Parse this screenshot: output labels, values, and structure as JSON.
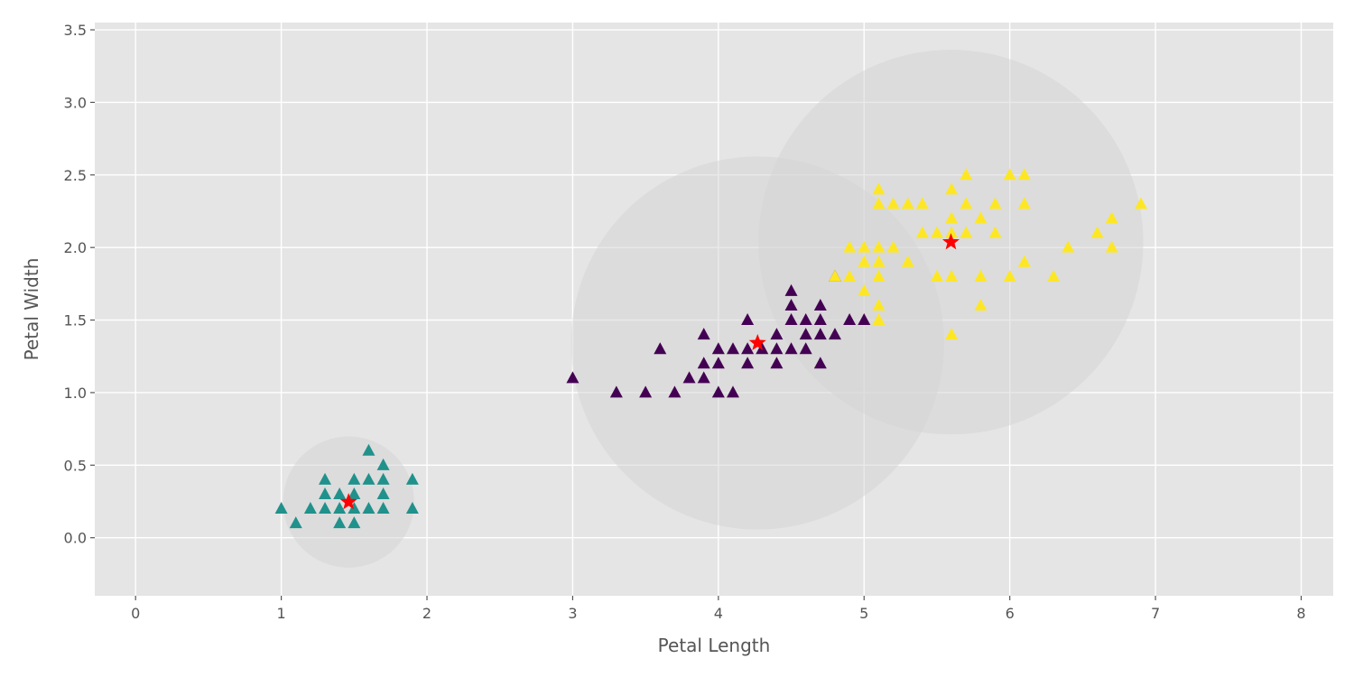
{
  "chart_data": {
    "type": "scatter",
    "title": "",
    "xlabel": "Petal Length",
    "ylabel": "Petal Width",
    "xlim": [
      -0.28,
      8.22
    ],
    "ylim": [
      -0.4,
      3.55
    ],
    "xticks": [
      0,
      1,
      2,
      3,
      4,
      5,
      6,
      7,
      8
    ],
    "yticks": [
      0.0,
      0.5,
      1.0,
      1.5,
      2.0,
      2.5,
      3.0,
      3.5
    ],
    "ytick_labels": [
      "0.0",
      "0.5",
      "1.0",
      "1.5",
      "2.0",
      "2.5",
      "3.0",
      "3.5"
    ],
    "grid": true,
    "background": "#e5e5e5",
    "marker": "triangle",
    "series": [
      {
        "color": "#21918c",
        "points": [
          [
            1.0,
            0.2
          ],
          [
            1.1,
            0.1
          ],
          [
            1.2,
            0.2
          ],
          [
            1.3,
            0.2
          ],
          [
            1.3,
            0.3
          ],
          [
            1.3,
            0.4
          ],
          [
            1.4,
            0.1
          ],
          [
            1.4,
            0.2
          ],
          [
            1.4,
            0.3
          ],
          [
            1.5,
            0.1
          ],
          [
            1.5,
            0.2
          ],
          [
            1.5,
            0.3
          ],
          [
            1.5,
            0.4
          ],
          [
            1.6,
            0.2
          ],
          [
            1.6,
            0.4
          ],
          [
            1.6,
            0.6
          ],
          [
            1.7,
            0.2
          ],
          [
            1.7,
            0.3
          ],
          [
            1.7,
            0.4
          ],
          [
            1.7,
            0.5
          ],
          [
            1.9,
            0.2
          ],
          [
            1.9,
            0.4
          ]
        ]
      },
      {
        "color": "#440154",
        "points": [
          [
            3.0,
            1.1
          ],
          [
            3.3,
            1.0
          ],
          [
            3.5,
            1.0
          ],
          [
            3.6,
            1.3
          ],
          [
            3.7,
            1.0
          ],
          [
            3.8,
            1.1
          ],
          [
            3.9,
            1.1
          ],
          [
            3.9,
            1.2
          ],
          [
            3.9,
            1.4
          ],
          [
            4.0,
            1.0
          ],
          [
            4.0,
            1.2
          ],
          [
            4.0,
            1.3
          ],
          [
            4.1,
            1.0
          ],
          [
            4.1,
            1.3
          ],
          [
            4.2,
            1.2
          ],
          [
            4.2,
            1.3
          ],
          [
            4.2,
            1.5
          ],
          [
            4.3,
            1.3
          ],
          [
            4.4,
            1.2
          ],
          [
            4.4,
            1.3
          ],
          [
            4.4,
            1.4
          ],
          [
            4.5,
            1.3
          ],
          [
            4.5,
            1.5
          ],
          [
            4.5,
            1.6
          ],
          [
            4.5,
            1.7
          ],
          [
            4.6,
            1.3
          ],
          [
            4.6,
            1.4
          ],
          [
            4.6,
            1.5
          ],
          [
            4.7,
            1.2
          ],
          [
            4.7,
            1.4
          ],
          [
            4.7,
            1.5
          ],
          [
            4.7,
            1.6
          ],
          [
            4.8,
            1.4
          ],
          [
            4.8,
            1.8
          ],
          [
            4.9,
            1.5
          ],
          [
            5.0,
            1.5
          ]
        ]
      },
      {
        "color": "#fde725",
        "points": [
          [
            4.8,
            1.8
          ],
          [
            4.9,
            1.8
          ],
          [
            4.9,
            2.0
          ],
          [
            5.0,
            1.7
          ],
          [
            5.0,
            1.9
          ],
          [
            5.0,
            2.0
          ],
          [
            5.1,
            1.5
          ],
          [
            5.1,
            1.6
          ],
          [
            5.1,
            1.8
          ],
          [
            5.1,
            1.9
          ],
          [
            5.1,
            2.0
          ],
          [
            5.1,
            2.3
          ],
          [
            5.1,
            2.4
          ],
          [
            5.2,
            2.0
          ],
          [
            5.2,
            2.3
          ],
          [
            5.3,
            1.9
          ],
          [
            5.3,
            2.3
          ],
          [
            5.4,
            2.1
          ],
          [
            5.4,
            2.3
          ],
          [
            5.5,
            1.8
          ],
          [
            5.5,
            2.1
          ],
          [
            5.6,
            1.4
          ],
          [
            5.6,
            1.8
          ],
          [
            5.6,
            2.1
          ],
          [
            5.6,
            2.2
          ],
          [
            5.6,
            2.4
          ],
          [
            5.7,
            2.1
          ],
          [
            5.7,
            2.3
          ],
          [
            5.7,
            2.5
          ],
          [
            5.8,
            1.6
          ],
          [
            5.8,
            1.8
          ],
          [
            5.8,
            2.2
          ],
          [
            5.9,
            2.1
          ],
          [
            5.9,
            2.3
          ],
          [
            6.0,
            1.8
          ],
          [
            6.0,
            2.5
          ],
          [
            6.1,
            1.9
          ],
          [
            6.1,
            2.3
          ],
          [
            6.1,
            2.5
          ],
          [
            6.3,
            1.8
          ],
          [
            6.4,
            2.0
          ],
          [
            6.6,
            2.1
          ],
          [
            6.7,
            2.0
          ],
          [
            6.7,
            2.2
          ],
          [
            6.9,
            2.3
          ]
        ]
      }
    ],
    "centroids": {
      "color": "#ff0000",
      "marker": "star",
      "points": [
        [
          1.462,
          0.246
        ],
        [
          4.269,
          1.342
        ],
        [
          5.596,
          2.037
        ]
      ]
    },
    "cluster_circles": {
      "color": "#d3d3d3",
      "circles": [
        {
          "center": [
            1.462,
            0.246
          ],
          "radius_x": 0.45
        },
        {
          "center": [
            4.269,
            1.342
          ],
          "radius_x": 1.28
        },
        {
          "center": [
            5.596,
            2.037
          ],
          "radius_x": 1.32
        }
      ]
    }
  }
}
